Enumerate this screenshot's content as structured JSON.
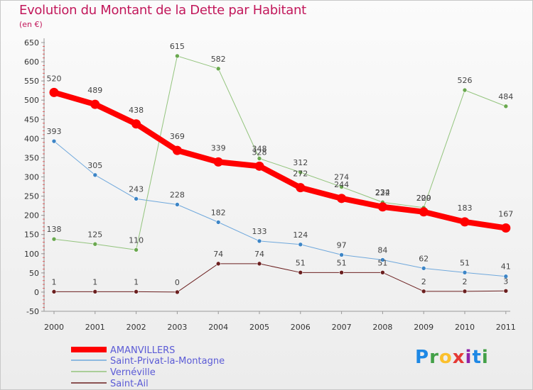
{
  "header": {
    "title": "Evolution du Montant de la Dette par Habitant",
    "subtitle": "(en €)"
  },
  "logo": {
    "text": "Proxiti",
    "colors": [
      "#1e88e5",
      "#43a047",
      "#fbc02d",
      "#e53935",
      "#8e24aa",
      "#1e88e5",
      "#43a047"
    ]
  },
  "chart_data": {
    "type": "line",
    "x": [
      "2000",
      "2001",
      "2002",
      "2003",
      "2004",
      "2005",
      "2006",
      "2007",
      "2008",
      "2009",
      "2010",
      "2011"
    ],
    "ylim": [
      -50,
      650
    ],
    "yticks": [
      "-50",
      "0",
      "50",
      "100",
      "150",
      "200",
      "250",
      "300",
      "350",
      "400",
      "450",
      "500",
      "550",
      "600",
      "650"
    ],
    "grid": false,
    "legend": "bottom-left",
    "series": [
      {
        "name": "AMANVILLERS",
        "color": "#ff0000",
        "width": 8,
        "values": [
          520,
          489,
          438,
          369,
          339,
          328,
          272,
          244,
          222,
          209,
          183,
          167
        ],
        "labels": [
          "520",
          "489",
          "438",
          "369",
          "339",
          "328",
          "272",
          "244",
          "222",
          "209",
          "183",
          "167"
        ]
      },
      {
        "name": "Saint-Privat-la-Montagne",
        "color": "#6fa8dc",
        "width": 1,
        "values": [
          393,
          305,
          243,
          228,
          182,
          133,
          124,
          97,
          84,
          62,
          51,
          41
        ],
        "labels": [
          "393",
          "305",
          "243",
          "228",
          "182",
          "133",
          "124",
          "97",
          "84",
          "62",
          "51",
          "41"
        ]
      },
      {
        "name": "Vernéville",
        "color": "#93c47d",
        "width": 1,
        "values": [
          138,
          125,
          110,
          615,
          582,
          348,
          312,
          274,
          234,
          220,
          526,
          484
        ],
        "labels": [
          "138",
          "125",
          "110",
          "615",
          "582",
          "348",
          "312",
          "274",
          "234",
          "220",
          "526",
          "484"
        ]
      },
      {
        "name": "Saint-Ail",
        "color": "#6b1f1f",
        "width": 1,
        "values": [
          1,
          1,
          1,
          0,
          74,
          74,
          51,
          51,
          51,
          2,
          2,
          3
        ],
        "labels": [
          "1",
          "1",
          "1",
          "0",
          "74",
          "74",
          "51",
          "51",
          "51",
          "2",
          "2",
          "3"
        ]
      }
    ]
  }
}
